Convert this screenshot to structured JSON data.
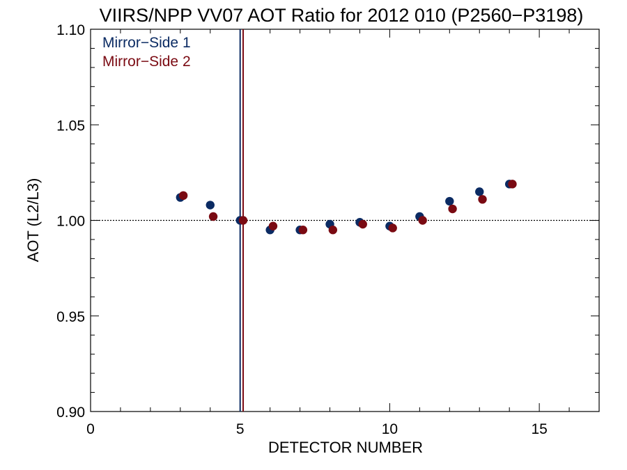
{
  "chart_data": {
    "type": "scatter",
    "title": "VIIRS/NPP VV07 AOT Ratio for 2012 010 (P2560−P3198)",
    "xlabel": "DETECTOR NUMBER",
    "ylabel": "AOT (L2/L3)",
    "xlim": [
      0,
      17
    ],
    "ylim": [
      0.9,
      1.1
    ],
    "x_ticks": [
      0,
      5,
      10,
      15
    ],
    "x_tick_labels": [
      "0",
      "5",
      "10",
      "15"
    ],
    "y_ticks": [
      0.9,
      0.95,
      1.0,
      1.05,
      1.1
    ],
    "y_tick_labels": [
      "0.90",
      "0.95",
      "1.00",
      "1.05",
      "1.10"
    ],
    "reference_line_y": 1.0,
    "vertical_lines": [
      {
        "x": 5.0,
        "color": "#0b2b63"
      },
      {
        "x": 5.1,
        "color": "#7a0a12"
      }
    ],
    "legend_placement": "top-left",
    "series": [
      {
        "name": "Mirror−Side 1",
        "color": "#0b2b63",
        "x": [
          3.0,
          4.0,
          5.0,
          6.0,
          7.0,
          8.0,
          9.0,
          10.0,
          11.0,
          12.0,
          13.0,
          14.0
        ],
        "y": [
          1.012,
          1.008,
          1.0,
          0.995,
          0.995,
          0.998,
          0.999,
          0.997,
          1.002,
          1.01,
          1.015,
          1.019
        ]
      },
      {
        "name": "Mirror−Side 2",
        "color": "#7a0a12",
        "x": [
          3.1,
          4.1,
          5.1,
          6.1,
          7.1,
          8.1,
          9.1,
          10.1,
          11.1,
          12.1,
          13.1,
          14.1
        ],
        "y": [
          1.013,
          1.002,
          1.0,
          0.997,
          0.995,
          0.995,
          0.998,
          0.996,
          1.0,
          1.006,
          1.011,
          1.019
        ]
      }
    ]
  }
}
